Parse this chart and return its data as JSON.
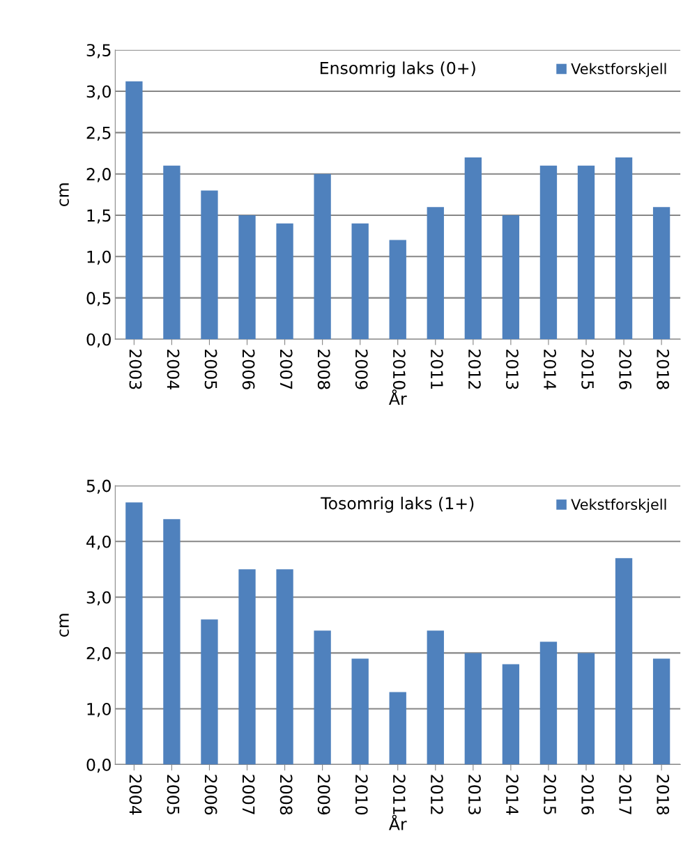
{
  "chart_data": [
    {
      "type": "bar",
      "title": "Ensomrig laks (0+)",
      "xlabel": "År",
      "ylabel": "cm",
      "categories": [
        "2003",
        "2004",
        "2005",
        "2006",
        "2007",
        "2008",
        "2009",
        "2010",
        "2011",
        "2012",
        "2013",
        "2014",
        "2015",
        "2016",
        "2018"
      ],
      "series": [
        {
          "name": "Vekstforskjell",
          "color": "#4f81bd",
          "values": [
            3.12,
            2.1,
            1.8,
            1.5,
            1.4,
            2.0,
            1.4,
            1.2,
            1.6,
            2.2,
            1.5,
            2.1,
            2.1,
            2.2,
            1.6
          ]
        }
      ],
      "ylim": [
        0,
        3.5
      ],
      "yticks": [
        {
          "value": 0,
          "label": "0,0"
        },
        {
          "value": 0.5,
          "label": "0,5"
        },
        {
          "value": 1,
          "label": "1,0"
        },
        {
          "value": 1.5,
          "label": "1,5"
        },
        {
          "value": 2,
          "label": "2,0"
        },
        {
          "value": 2.5,
          "label": "2,5"
        },
        {
          "value": 3,
          "label": "3,0"
        },
        {
          "value": 3.5,
          "label": "3,5"
        }
      ],
      "grid": "y",
      "legend": "top right"
    },
    {
      "type": "bar",
      "title": "Tosomrig laks (1+)",
      "xlabel": "År",
      "ylabel": "cm",
      "categories": [
        "2004",
        "2005",
        "2006",
        "2007",
        "2008",
        "2009",
        "2010",
        "2011",
        "2012",
        "2013",
        "2014",
        "2015",
        "2016",
        "2017",
        "2018"
      ],
      "series": [
        {
          "name": "Vekstforskjell",
          "color": "#4f81bd",
          "values": [
            4.7,
            4.4,
            2.6,
            3.5,
            3.5,
            2.4,
            1.9,
            1.3,
            2.4,
            2.0,
            1.8,
            2.2,
            2.0,
            3.7,
            1.9
          ]
        }
      ],
      "ylim": [
        0,
        5
      ],
      "yticks": [
        {
          "value": 0,
          "label": "0,0"
        },
        {
          "value": 1,
          "label": "1,0"
        },
        {
          "value": 2,
          "label": "2,0"
        },
        {
          "value": 3,
          "label": "3,0"
        },
        {
          "value": 4,
          "label": "4,0"
        },
        {
          "value": 5,
          "label": "5,0"
        }
      ],
      "grid": "y",
      "legend": "top right"
    }
  ]
}
